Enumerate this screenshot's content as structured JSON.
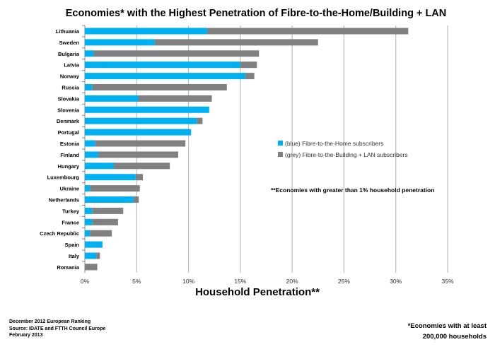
{
  "chart_data": {
    "type": "bar",
    "orientation": "horizontal",
    "stacked": true,
    "title": "Economies* with the Highest Penetration of Fibre-to-the-Home/Building + LAN",
    "xlabel": "Household Penetration**",
    "ylabel": "",
    "xlim": [
      0,
      35
    ],
    "x_unit": "%",
    "xticks": [
      "0%",
      "5%",
      "10%",
      "15%",
      "20%",
      "25%",
      "30%",
      "35%"
    ],
    "grid": "vertical",
    "legend_placement": "right",
    "categories": [
      "Lithuania",
      "Sweden",
      "Bulgaria",
      "Latvia",
      "Norway",
      "Russia",
      "Slovakia",
      "Slovenia",
      "Denmark",
      "Portugal",
      "Estonia",
      "Finland",
      "Hungary",
      "Luxembourg",
      "Ukraine",
      "Netherlands",
      "Turkey",
      "France",
      "Czech Republic",
      "Spain",
      "Italy",
      "Romania"
    ],
    "series": [
      {
        "name": "(blue) Fibre-to-the-Home subscribers",
        "color": "#00b0f0",
        "values": [
          11.8,
          6.75,
          0.85,
          15.0,
          15.5,
          0.7,
          5.15,
          12.0,
          10.8,
          10.25,
          1.0,
          1.3,
          2.8,
          4.9,
          0.5,
          4.7,
          0.7,
          0.7,
          0.5,
          1.7,
          1.1,
          0
        ]
      },
      {
        "name": "(grey) Fibre-to-the-Building + LAN subscribers",
        "color": "#808080",
        "values": [
          19.4,
          15.75,
          15.95,
          1.6,
          0.85,
          13.0,
          7.1,
          0,
          0.55,
          0,
          8.7,
          7.7,
          5.4,
          0.7,
          4.8,
          0.5,
          3.0,
          2.5,
          2.1,
          0,
          0.35,
          1.2
        ]
      }
    ],
    "annotation": "**Economies with greater than 1% household penetration"
  },
  "footer": {
    "left": [
      "December 2012 European Ranking",
      "Source: IDATE and FTTH Council Europe",
      "February 2013"
    ],
    "right": [
      "*Economies with at least",
      "200,000 households"
    ]
  }
}
